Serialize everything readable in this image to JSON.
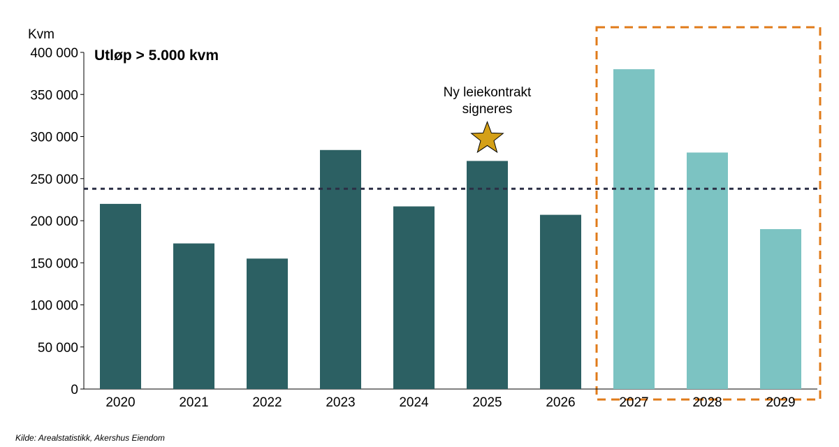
{
  "chart_data": {
    "type": "bar",
    "title": "Utløp > 5.000 kvm",
    "ylabel": "Kvm",
    "xlabel": "",
    "categories": [
      "2020",
      "2021",
      "2022",
      "2023",
      "2024",
      "2025",
      "2026",
      "2027",
      "2028",
      "2029"
    ],
    "values": [
      220000,
      173000,
      155000,
      284000,
      217000,
      271000,
      207000,
      380000,
      281000,
      190000
    ],
    "ylim": [
      0,
      400000
    ],
    "yticks": [
      0,
      50000,
      100000,
      150000,
      200000,
      250000,
      300000,
      350000,
      400000
    ],
    "ytick_labels": [
      "0",
      "50 000",
      "100 000",
      "150 000",
      "200 000",
      "250 000",
      "300 000",
      "350 000",
      "400 000"
    ],
    "reference_line": {
      "value": 238000,
      "style": "dotted",
      "color": "#2b2f45"
    },
    "annotation": {
      "text_lines": [
        "Ny leiekontrakt",
        "signeres"
      ],
      "category": "2025",
      "marker": "star-icon",
      "marker_color": "#d4a017"
    },
    "highlight_box": {
      "categories": [
        "2027",
        "2028",
        "2029"
      ],
      "style": "dashed",
      "color": "#e07b1a"
    },
    "colors": {
      "historic": "#2c6063",
      "forecast": "#7cc3c2"
    },
    "forecast_categories": [
      "2027",
      "2028",
      "2029"
    ],
    "grid": false,
    "legend": "none"
  },
  "source": "Kilde: Arealstatistikk, Akershus Eiendom"
}
